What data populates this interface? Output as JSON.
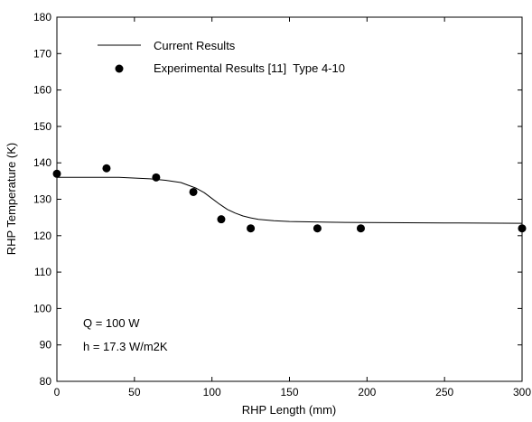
{
  "chart_data": {
    "type": "line",
    "title": "",
    "xlabel": "RHP Length (mm)",
    "ylabel": "RHP Temperature (K)",
    "xlim": [
      0,
      300
    ],
    "ylim": [
      80,
      180
    ],
    "xticks": [
      0,
      50,
      100,
      150,
      200,
      250,
      300
    ],
    "yticks": [
      80,
      90,
      100,
      110,
      120,
      130,
      140,
      150,
      160,
      170,
      180
    ],
    "grid": false,
    "legend_position": "top-left",
    "series": [
      {
        "name": "Current Results",
        "kind": "line",
        "color": "#000000",
        "x": [
          0,
          20,
          40,
          60,
          70,
          80,
          90,
          95,
          100,
          105,
          110,
          115,
          120,
          125,
          130,
          140,
          150,
          175,
          200,
          250,
          300
        ],
        "y": [
          136.0,
          136.0,
          136.0,
          135.6,
          135.2,
          134.6,
          133.0,
          131.8,
          130.2,
          128.6,
          127.2,
          126.2,
          125.4,
          124.9,
          124.5,
          124.1,
          123.9,
          123.7,
          123.6,
          123.5,
          123.4
        ]
      },
      {
        "name": "Experimental Results [11]  Type 4-10",
        "kind": "scatter",
        "color": "#000000",
        "x": [
          0,
          32,
          64,
          88,
          106,
          125,
          168,
          196,
          300
        ],
        "y": [
          137.0,
          138.5,
          136.0,
          132.0,
          124.5,
          122.0,
          122.0,
          122.0,
          122.0
        ]
      }
    ],
    "annotations": [
      "Q = 100 W",
      "h = 17.3 W/m2K"
    ]
  }
}
